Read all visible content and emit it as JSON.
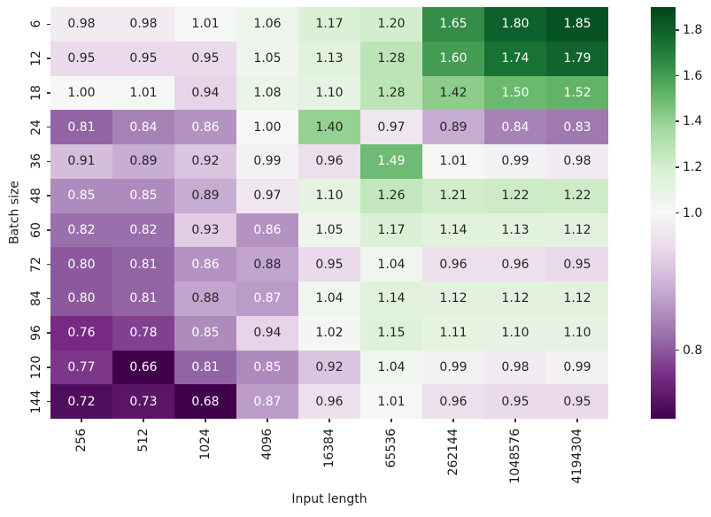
{
  "chart_data": {
    "type": "heatmap",
    "title": "",
    "xlabel": "Input length",
    "ylabel": "Batch size",
    "x_categories": [
      "256",
      "512",
      "1024",
      "4096",
      "16384",
      "65536",
      "262144",
      "1048576",
      "4194304"
    ],
    "y_categories": [
      "6",
      "12",
      "18",
      "24",
      "36",
      "48",
      "60",
      "72",
      "84",
      "96",
      "120",
      "144"
    ],
    "values": [
      [
        0.98,
        0.98,
        1.01,
        1.06,
        1.17,
        1.2,
        1.65,
        1.8,
        1.85
      ],
      [
        0.95,
        0.95,
        0.95,
        1.05,
        1.13,
        1.28,
        1.6,
        1.74,
        1.79
      ],
      [
        1.0,
        1.01,
        0.94,
        1.08,
        1.1,
        1.28,
        1.42,
        1.5,
        1.52
      ],
      [
        0.81,
        0.84,
        0.86,
        1.0,
        1.4,
        0.97,
        0.89,
        0.84,
        0.83
      ],
      [
        0.91,
        0.89,
        0.92,
        0.99,
        0.96,
        1.49,
        1.01,
        0.99,
        0.98
      ],
      [
        0.85,
        0.85,
        0.89,
        0.97,
        1.1,
        1.26,
        1.21,
        1.22,
        1.22
      ],
      [
        0.82,
        0.82,
        0.93,
        0.86,
        1.05,
        1.17,
        1.14,
        1.13,
        1.12
      ],
      [
        0.8,
        0.81,
        0.86,
        0.88,
        0.95,
        1.04,
        0.96,
        0.96,
        0.95
      ],
      [
        0.8,
        0.81,
        0.88,
        0.87,
        1.04,
        1.14,
        1.12,
        1.12,
        1.12
      ],
      [
        0.76,
        0.78,
        0.85,
        0.94,
        1.02,
        1.15,
        1.11,
        1.1,
        1.1
      ],
      [
        0.77,
        0.66,
        0.81,
        0.85,
        0.92,
        1.04,
        0.99,
        0.98,
        0.99
      ],
      [
        0.72,
        0.73,
        0.68,
        0.87,
        0.96,
        1.01,
        0.96,
        0.95,
        0.95
      ]
    ],
    "value_decimals": 2,
    "colormap": "PRGn",
    "colormap_anchors": [
      "#40004b",
      "#762a83",
      "#9970ab",
      "#c2a5cf",
      "#e7d4e8",
      "#f7f7f7",
      "#d9f0d3",
      "#a6dba0",
      "#5aae61",
      "#1b7837",
      "#00441b"
    ],
    "norm": {
      "type": "two-slope",
      "vmin": 0.7,
      "vcenter": 1.0,
      "vmax": 1.9
    },
    "colorbar_ticks": [
      {
        "label": "1.8",
        "value": 1.8
      },
      {
        "label": "1.6",
        "value": 1.6
      },
      {
        "label": "1.4",
        "value": 1.4
      },
      {
        "label": "1.2",
        "value": 1.2
      },
      {
        "label": "1.0",
        "value": 1.0
      },
      {
        "label": "0.8",
        "value": 0.8
      }
    ],
    "legend_position": "right-colorbar",
    "grid": false,
    "annotation_dark_text": "#262626",
    "annotation_light_text": "#ffffff",
    "background": "#ffffff"
  }
}
